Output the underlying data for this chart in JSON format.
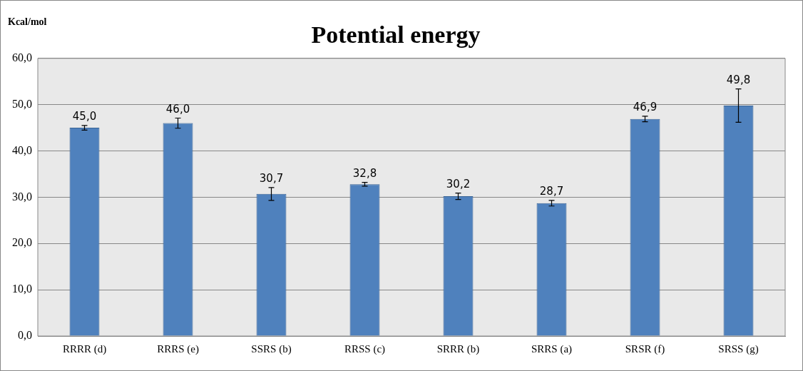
{
  "chart_data": {
    "type": "bar",
    "title": "Potential energy",
    "ylabel": "Kcal/mol",
    "categories": [
      "RRRR (d)",
      "RRRS (e)",
      "SSRS (b)",
      "RRSS (c)",
      "SRRR (b)",
      "SRRS (a)",
      "SRSR (f)",
      "SRSS (g)"
    ],
    "values": [
      45.0,
      46.0,
      30.7,
      32.8,
      30.2,
      28.7,
      46.9,
      49.8
    ],
    "value_labels": [
      "45,0",
      "46,0",
      "30,7",
      "32,8",
      "30,2",
      "28,7",
      "46,9",
      "49,8"
    ],
    "errors": [
      0.5,
      1.1,
      1.4,
      0.4,
      0.7,
      0.6,
      0.6,
      3.6
    ],
    "color": "#4f81bd",
    "ylim": [
      0,
      60
    ],
    "yticks": [
      {
        "value": 0,
        "label": "0,0"
      },
      {
        "value": 10,
        "label": "10,0"
      },
      {
        "value": 20,
        "label": "20,0"
      },
      {
        "value": 30,
        "label": "30,0"
      },
      {
        "value": 40,
        "label": "40,0"
      },
      {
        "value": 50,
        "label": "50,0"
      },
      {
        "value": 60,
        "label": "60,0"
      }
    ],
    "grid": "y",
    "legend": false
  }
}
